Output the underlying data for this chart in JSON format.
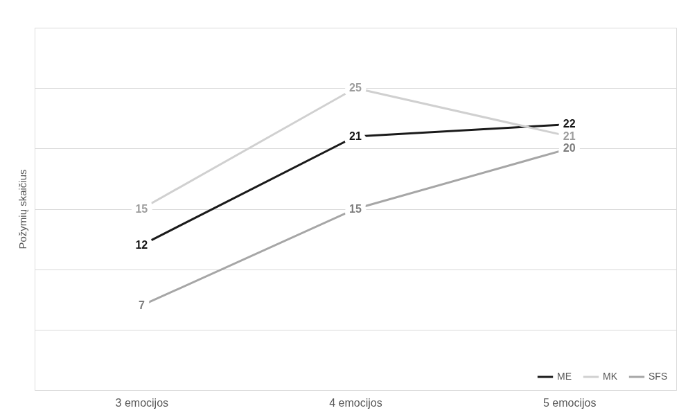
{
  "chart_data": {
    "type": "line",
    "ylabel": "Požymių skaičius",
    "categories": [
      "3 emocijos",
      "4 emocijos",
      "5 emocijos"
    ],
    "series": [
      {
        "name": "ME",
        "color": "#1a1a1a",
        "values": [
          12,
          21,
          22
        ]
      },
      {
        "name": "MK",
        "color": "#d0d0d0",
        "values": [
          15,
          25,
          21
        ]
      },
      {
        "name": "SFS",
        "color": "#a6a6a6",
        "values": [
          7,
          15,
          20
        ]
      }
    ],
    "ylim": [
      0,
      30
    ],
    "yticks": [
      {
        "value": 0,
        "label": null
      },
      {
        "value": 5,
        "label": null
      },
      {
        "value": 10,
        "label": null
      },
      {
        "value": 15,
        "label": null
      },
      {
        "value": 20,
        "label": null
      },
      {
        "value": 25,
        "label": null
      },
      {
        "value": 30,
        "label": null
      }
    ],
    "tick_labels": "x",
    "grid": "y",
    "legend": "bottom right",
    "marker": "none",
    "line_style": "solid",
    "data_labels": true
  }
}
